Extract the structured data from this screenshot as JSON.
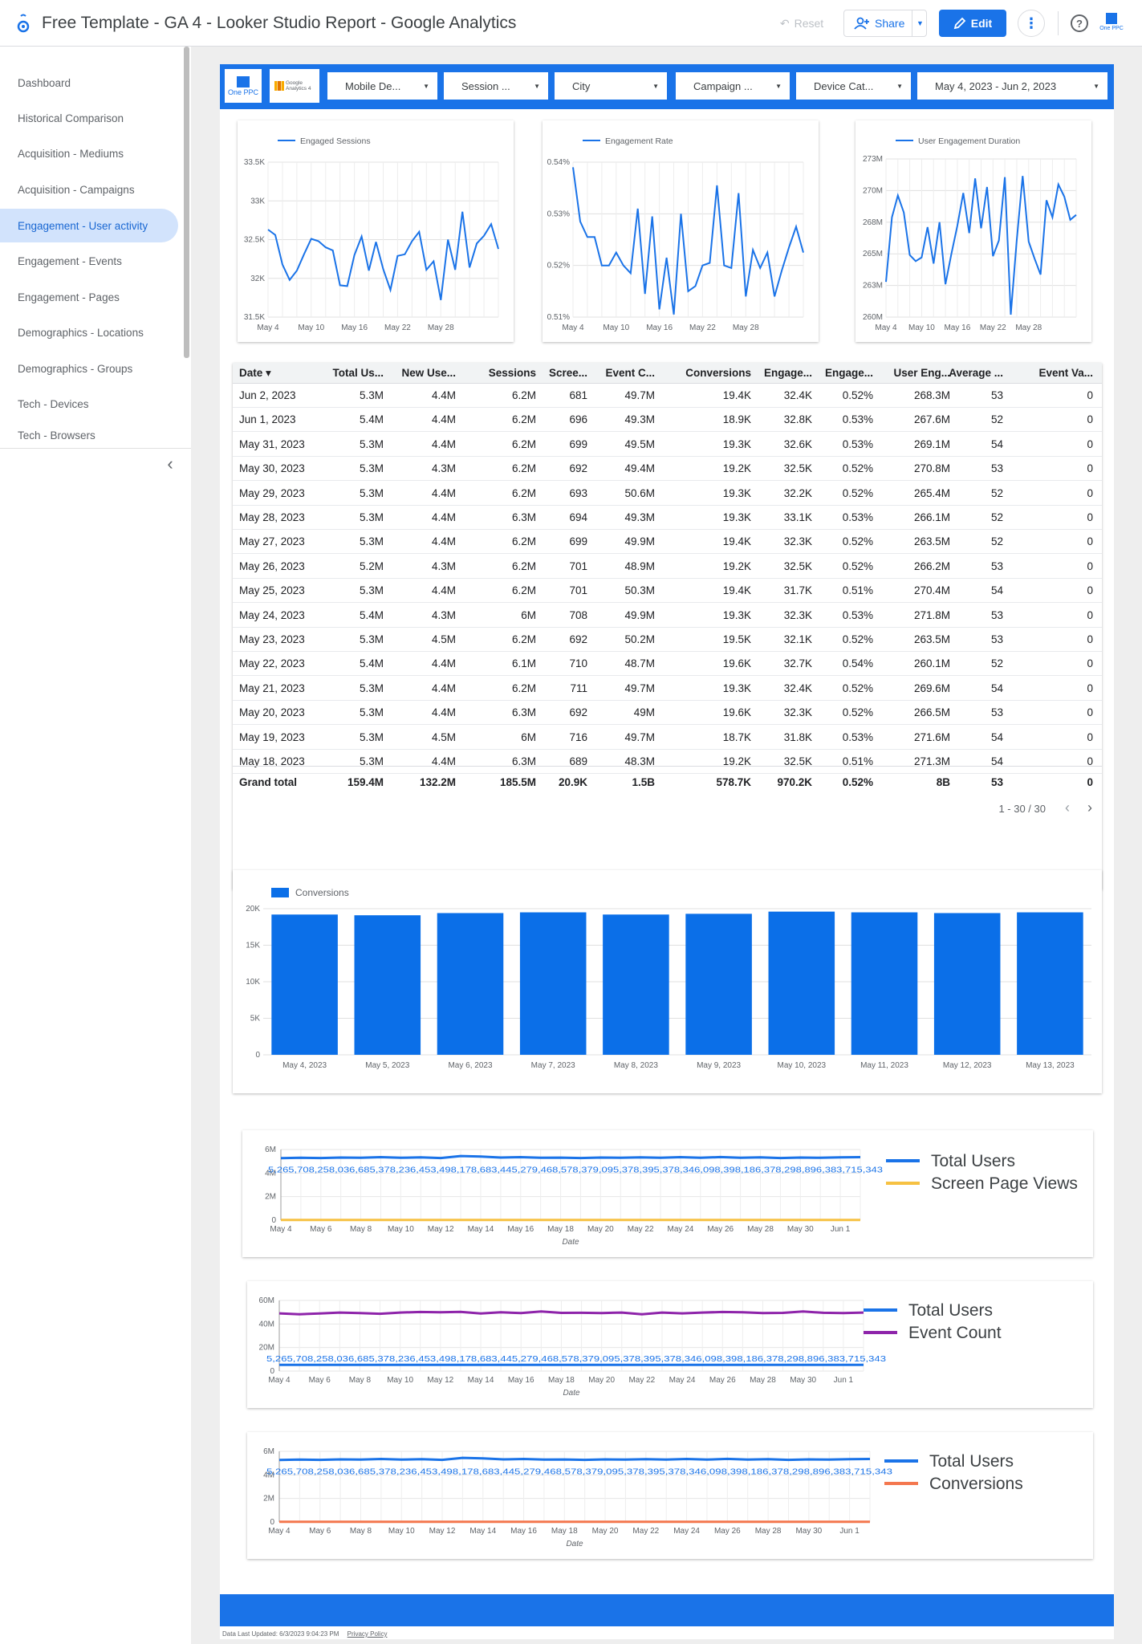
{
  "header": {
    "title": "Free Template - GA 4 - Looker Studio Report - Google Analytics",
    "reset_label": "Reset",
    "share_label": "Share",
    "edit_label": "Edit",
    "brand_label": "One PPC"
  },
  "sidebar": {
    "items": [
      {
        "label": "Dashboard"
      },
      {
        "label": "Historical Comparison"
      },
      {
        "label": "Acquisition - Mediums"
      },
      {
        "label": "Acquisition - Campaigns"
      },
      {
        "label": "Engagement - User activity"
      },
      {
        "label": "Engagement - Events"
      },
      {
        "label": "Engagement - Pages"
      },
      {
        "label": "Demographics - Locations"
      },
      {
        "label": "Demographics - Groups"
      },
      {
        "label": "Tech - Devices"
      },
      {
        "label": "Tech - Browsers"
      }
    ],
    "active_index": 4
  },
  "filters": {
    "logo_onepcc": "One PPC",
    "logo_ga": "Google Analytics 4",
    "chips": [
      "Mobile De...",
      "Session ...",
      "City",
      "Campaign ...",
      "Device Cat...",
      "May 4, 2023 - Jun 2, 2023"
    ]
  },
  "colors": {
    "accent": "#1a73e8",
    "bar": "#0b6fe8",
    "line_users": "#1a73e8",
    "line_pageviews": "#f6c142",
    "line_events": "#8e24aa",
    "line_conversions": "#f4774e"
  },
  "chart_data": [
    {
      "type": "line",
      "legend": [
        "Engaged Sessions"
      ],
      "y_ticks": [
        "33.5K",
        "33K",
        "32.5K",
        "32K",
        "31.5K"
      ],
      "x_ticks": [
        "May 4",
        "May 10",
        "May 16",
        "May 22",
        "May 28"
      ],
      "ylim": [
        31500,
        33500
      ],
      "series": [
        {
          "name": "Engaged Sessions",
          "values": [
            32630,
            32560,
            32180,
            31980,
            32100,
            32310,
            32510,
            32480,
            32400,
            32360,
            31910,
            31900,
            32300,
            32540,
            32100,
            32470,
            32120,
            31850,
            32290,
            32310,
            32480,
            32600,
            32110,
            32220,
            31720,
            32500,
            32110,
            32860,
            32140,
            32450,
            32550,
            32700,
            32380
          ]
        }
      ]
    },
    {
      "type": "line",
      "legend": [
        "Engagement Rate"
      ],
      "y_ticks": [
        "0.54%",
        "0.53%",
        "0.52%",
        "0.51%"
      ],
      "x_ticks": [
        "May 4",
        "May 10",
        "May 16",
        "May 22",
        "May 28"
      ],
      "ylim": [
        0.51,
        0.54
      ],
      "series": [
        {
          "name": "Engagement Rate",
          "values": [
            0.539,
            0.5285,
            0.5255,
            0.5255,
            0.52,
            0.52,
            0.5225,
            0.52,
            0.5185,
            0.531,
            0.5145,
            0.5295,
            0.5115,
            0.5215,
            0.5105,
            0.53,
            0.515,
            0.516,
            0.52,
            0.5205,
            0.5355,
            0.52,
            0.5195,
            0.534,
            0.514,
            0.523,
            0.5195,
            0.5225,
            0.514,
            0.519,
            0.5235,
            0.5275,
            0.5225
          ]
        }
      ]
    },
    {
      "type": "line",
      "legend": [
        "User Engagement Duration"
      ],
      "y_ticks": [
        "273M",
        "270M",
        "268M",
        "265M",
        "263M",
        "260M"
      ],
      "x_ticks": [
        "May 4",
        "May 10",
        "May 16",
        "May 22",
        "May 28"
      ],
      "ylim": [
        260,
        273
      ],
      "series": [
        {
          "name": "User Engagement Duration",
          "values": [
            262.9,
            268.2,
            270.0,
            268.6,
            265.1,
            264.6,
            264.9,
            267.4,
            264.4,
            267.8,
            262.7,
            265.2,
            267.5,
            270.2,
            266.9,
            271.4,
            267.3,
            270.7,
            265.0,
            266.3,
            271.5,
            260.2,
            266.3,
            271.6,
            266.2,
            264.8,
            263.5,
            269.6,
            268.2,
            270.9,
            269.9,
            268.0,
            268.4
          ]
        }
      ]
    },
    {
      "type": "bar",
      "legend": [
        "Conversions"
      ],
      "categories": [
        "May 4, 2023",
        "May 5, 2023",
        "May 6, 2023",
        "May 7, 2023",
        "May 8, 2023",
        "May 9, 2023",
        "May 10, 2023",
        "May 11, 2023",
        "May 12, 2023",
        "May 13, 2023"
      ],
      "values": [
        19200,
        19100,
        19400,
        19500,
        19200,
        19300,
        19600,
        19500,
        19400,
        19500
      ],
      "y_ticks": [
        "20K",
        "15K",
        "10K",
        "5K",
        "0"
      ],
      "ylim": [
        0,
        20000
      ]
    },
    {
      "type": "line",
      "legend": [
        "Total Users",
        "Screen Page Views"
      ],
      "y_ticks": [
        "6M",
        "4M",
        "2M",
        "0"
      ],
      "x_ticks": [
        "May 4",
        "May 6",
        "May 8",
        "May 10",
        "May 12",
        "May 14",
        "May 16",
        "May 18",
        "May 20",
        "May 22",
        "May 24",
        "May 26",
        "May 28",
        "May 30",
        "Jun 1"
      ],
      "x_axis_label": "Date",
      "ylim": [
        0,
        6
      ],
      "series": [
        {
          "name": "Total Users",
          "values_millions": [
            5.27,
            5.3,
            5.28,
            5.32,
            5.3,
            5.35,
            5.3,
            5.33,
            5.28,
            5.45,
            5.4,
            5.32,
            5.35,
            5.3,
            5.31,
            5.28,
            5.32,
            5.3,
            5.34,
            5.3,
            5.35,
            5.3,
            5.36,
            5.3,
            5.34,
            5.28,
            5.32,
            5.3,
            5.33,
            5.35
          ]
        },
        {
          "name": "Screen Page Views",
          "values_millions": [
            0.02,
            0.02,
            0.02,
            0.02,
            0.02,
            0.02,
            0.02,
            0.02,
            0.02,
            0.02,
            0.02,
            0.02,
            0.02,
            0.02,
            0.02,
            0.02,
            0.02,
            0.02,
            0.02,
            0.02,
            0.02,
            0.02,
            0.02,
            0.02,
            0.02,
            0.02,
            0.02,
            0.02,
            0.02,
            0.02
          ]
        }
      ],
      "data_label_strip": "5,265,708,258,036,685,378,236,453,498,178,683,445,279,468,578,379,095,378,395,378,346,098,398,186,378,298,896,383,715,343"
    },
    {
      "type": "line",
      "legend": [
        "Total Users",
        "Event Count"
      ],
      "y_ticks": [
        "60M",
        "40M",
        "20M",
        "0"
      ],
      "x_ticks": [
        "May 4",
        "May 6",
        "May 8",
        "May 10",
        "May 12",
        "May 14",
        "May 16",
        "May 18",
        "May 20",
        "May 22",
        "May 24",
        "May 26",
        "May 28",
        "May 30",
        "Jun 1"
      ],
      "x_axis_label": "Date",
      "ylim": [
        0,
        60
      ],
      "series": [
        {
          "name": "Total Users",
          "values_millions": [
            5.3,
            5.3,
            5.3,
            5.3,
            5.3,
            5.3,
            5.3,
            5.3,
            5.3,
            5.3,
            5.3,
            5.3,
            5.3,
            5.3,
            5.3,
            5.3,
            5.3,
            5.3,
            5.3,
            5.3,
            5.3,
            5.3,
            5.3,
            5.3,
            5.3,
            5.3,
            5.3,
            5.3,
            5.3,
            5.3
          ]
        },
        {
          "name": "Event Count",
          "values_millions": [
            49.0,
            48.3,
            48.9,
            49.7,
            49.3,
            48.7,
            49.7,
            50.2,
            49.9,
            50.3,
            48.9,
            49.9,
            49.3,
            50.6,
            49.4,
            49.5,
            49.3,
            49.7,
            48.3,
            49.7,
            49.0,
            49.7,
            50.2,
            49.9,
            49.3,
            49.4,
            50.6,
            49.5,
            49.3,
            49.7
          ]
        }
      ],
      "data_label_strip": "5,265,708,258,036,685,378,236,453,498,178,683,445,279,468,578,379,095,378,395,378,346,098,398,186,378,298,896,383,715,343"
    },
    {
      "type": "line",
      "legend": [
        "Total Users",
        "Conversions"
      ],
      "y_ticks": [
        "6M",
        "4M",
        "2M",
        "0"
      ],
      "x_ticks": [
        "May 4",
        "May 6",
        "May 8",
        "May 10",
        "May 12",
        "May 14",
        "May 16",
        "May 18",
        "May 20",
        "May 22",
        "May 24",
        "May 26",
        "May 28",
        "May 30",
        "Jun 1"
      ],
      "x_axis_label": "Date",
      "ylim": [
        0,
        6
      ],
      "series": [
        {
          "name": "Total Users",
          "values_millions": [
            5.27,
            5.3,
            5.28,
            5.32,
            5.3,
            5.35,
            5.3,
            5.33,
            5.28,
            5.45,
            5.4,
            5.32,
            5.35,
            5.3,
            5.31,
            5.28,
            5.32,
            5.3,
            5.34,
            5.3,
            5.35,
            5.3,
            5.36,
            5.3,
            5.34,
            5.28,
            5.32,
            5.3,
            5.33,
            5.35
          ]
        },
        {
          "name": "Conversions",
          "values_millions": [
            0.02,
            0.02,
            0.02,
            0.02,
            0.02,
            0.02,
            0.02,
            0.02,
            0.02,
            0.02,
            0.02,
            0.02,
            0.02,
            0.02,
            0.02,
            0.02,
            0.02,
            0.02,
            0.02,
            0.02,
            0.02,
            0.02,
            0.02,
            0.02,
            0.02,
            0.02,
            0.02,
            0.02,
            0.02,
            0.02
          ]
        }
      ],
      "data_label_strip": "5,265,708,258,036,685,378,236,453,498,178,683,445,279,468,578,379,095,378,395,378,346,098,398,186,378,298,896,383,715,343"
    }
  ],
  "table": {
    "columns": [
      "Date",
      "Total Us...",
      "New Use...",
      "Sessions",
      "Scree...",
      "Event C...",
      "Conversions",
      "Engage...",
      "Engage...",
      "User Eng...",
      "Average ...",
      "Event Va..."
    ],
    "sort_indicator": "▾",
    "rows": [
      [
        "Jun 2, 2023",
        "5.3M",
        "4.4M",
        "6.2M",
        "681",
        "49.7M",
        "19.4K",
        "32.4K",
        "0.52%",
        "268.3M",
        "53",
        "0"
      ],
      [
        "Jun 1, 2023",
        "5.4M",
        "4.4M",
        "6.2M",
        "696",
        "49.3M",
        "18.9K",
        "32.8K",
        "0.53%",
        "267.6M",
        "52",
        "0"
      ],
      [
        "May 31, 2023",
        "5.3M",
        "4.4M",
        "6.2M",
        "699",
        "49.5M",
        "19.3K",
        "32.6K",
        "0.53%",
        "269.1M",
        "54",
        "0"
      ],
      [
        "May 30, 2023",
        "5.3M",
        "4.3M",
        "6.2M",
        "692",
        "49.4M",
        "19.2K",
        "32.5K",
        "0.52%",
        "270.8M",
        "53",
        "0"
      ],
      [
        "May 29, 2023",
        "5.3M",
        "4.4M",
        "6.2M",
        "693",
        "50.6M",
        "19.3K",
        "32.2K",
        "0.52%",
        "265.4M",
        "52",
        "0"
      ],
      [
        "May 28, 2023",
        "5.3M",
        "4.4M",
        "6.3M",
        "694",
        "49.3M",
        "19.3K",
        "33.1K",
        "0.53%",
        "266.1M",
        "52",
        "0"
      ],
      [
        "May 27, 2023",
        "5.3M",
        "4.4M",
        "6.2M",
        "699",
        "49.9M",
        "19.4K",
        "32.3K",
        "0.52%",
        "263.5M",
        "52",
        "0"
      ],
      [
        "May 26, 2023",
        "5.2M",
        "4.3M",
        "6.2M",
        "701",
        "48.9M",
        "19.2K",
        "32.5K",
        "0.52%",
        "266.2M",
        "53",
        "0"
      ],
      [
        "May 25, 2023",
        "5.3M",
        "4.4M",
        "6.2M",
        "701",
        "50.3M",
        "19.4K",
        "31.7K",
        "0.51%",
        "270.4M",
        "54",
        "0"
      ],
      [
        "May 24, 2023",
        "5.4M",
        "4.3M",
        "6M",
        "708",
        "49.9M",
        "19.3K",
        "32.3K",
        "0.53%",
        "271.8M",
        "53",
        "0"
      ],
      [
        "May 23, 2023",
        "5.3M",
        "4.5M",
        "6.2M",
        "692",
        "50.2M",
        "19.5K",
        "32.1K",
        "0.52%",
        "263.5M",
        "53",
        "0"
      ],
      [
        "May 22, 2023",
        "5.4M",
        "4.4M",
        "6.1M",
        "710",
        "48.7M",
        "19.6K",
        "32.7K",
        "0.54%",
        "260.1M",
        "52",
        "0"
      ],
      [
        "May 21, 2023",
        "5.3M",
        "4.4M",
        "6.2M",
        "711",
        "49.7M",
        "19.3K",
        "32.4K",
        "0.52%",
        "269.6M",
        "54",
        "0"
      ],
      [
        "May 20, 2023",
        "5.3M",
        "4.4M",
        "6.3M",
        "692",
        "49M",
        "19.6K",
        "32.3K",
        "0.52%",
        "266.5M",
        "53",
        "0"
      ],
      [
        "May 19, 2023",
        "5.3M",
        "4.5M",
        "6M",
        "716",
        "49.7M",
        "18.7K",
        "31.8K",
        "0.53%",
        "271.6M",
        "54",
        "0"
      ],
      [
        "May 18, 2023",
        "5.3M",
        "4.4M",
        "6.3M",
        "689",
        "48.3M",
        "19.2K",
        "32.5K",
        "0.51%",
        "271.3M",
        "54",
        "0"
      ]
    ],
    "grand_total": [
      "Grand total",
      "159.4M",
      "132.2M",
      "185.5M",
      "20.9K",
      "1.5B",
      "578.7K",
      "970.2K",
      "0.52%",
      "8B",
      "53",
      "0"
    ],
    "pagination": "1 - 30 / 30"
  },
  "footer": {
    "last_updated": "Data Last Updated: 6/3/2023 9:04:23 PM",
    "privacy": "Privacy Policy"
  }
}
